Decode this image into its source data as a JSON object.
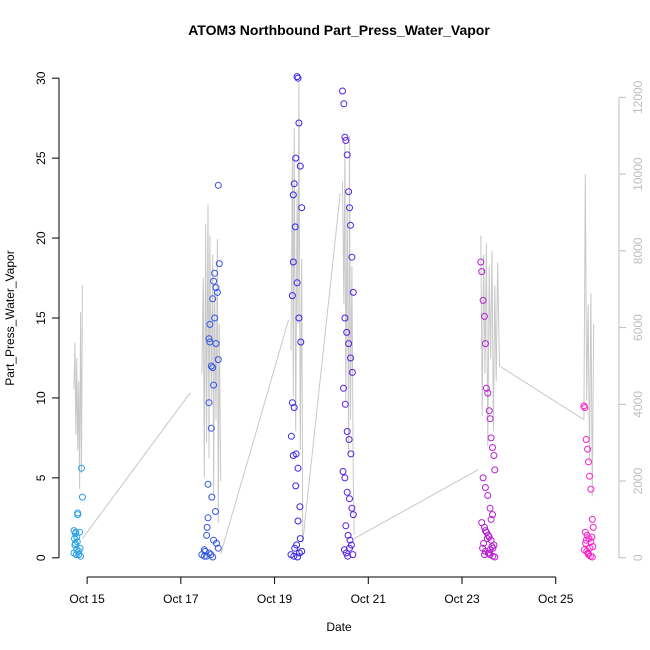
{
  "chart_data": {
    "type": "scatter",
    "title": "ATOM3 Northbound Part_Press_Water_Vapor",
    "xlabel": "Date",
    "ylabel": "Part_Press_Water_Vapor",
    "x_ticks": [
      "Oct 15",
      "Oct 17",
      "Oct 19",
      "Oct 21",
      "Oct 23",
      "Oct 25"
    ],
    "x_tick_values": [
      15,
      17,
      19,
      21,
      23,
      25
    ],
    "xlim": [
      14.4,
      26.35
    ],
    "y_ticks": [
      0,
      5,
      10,
      15,
      20,
      25,
      30
    ],
    "ylim": [
      -1.2,
      31.2
    ],
    "y2_ticks": [
      0,
      2000,
      4000,
      6000,
      8000,
      10000,
      12000
    ],
    "y2lim": [
      -500,
      13000
    ],
    "grid": false,
    "series": [
      {
        "kind": "points",
        "color_start": "#29a3e6",
        "color_end": "#ff1fc8",
        "x": [
          14.72,
          14.73,
          14.74,
          14.75,
          14.76,
          14.77,
          14.78,
          14.79,
          14.8,
          14.8,
          14.82,
          14.84,
          14.86,
          14.88,
          14.9,
          14.72,
          14.75,
          14.78,
          14.82,
          14.85,
          17.45,
          17.5,
          17.55,
          17.58,
          17.6,
          17.62,
          17.65,
          17.68,
          17.7,
          17.72,
          17.75,
          17.78,
          17.8,
          17.82,
          17.55,
          17.6,
          17.65,
          17.7,
          17.75,
          17.8,
          17.62,
          17.68,
          17.72,
          17.58,
          17.66,
          17.74,
          17.5,
          17.6,
          17.7,
          17.8,
          17.52,
          17.64,
          17.76,
          17.56,
          17.68,
          19.35,
          19.38,
          19.4,
          19.42,
          19.45,
          19.48,
          19.5,
          19.52,
          19.55,
          19.58,
          19.4,
          19.44,
          19.48,
          19.52,
          19.56,
          19.38,
          19.42,
          19.46,
          19.5,
          19.54,
          19.36,
          19.4,
          19.45,
          19.5,
          19.55,
          19.58,
          19.41,
          19.47,
          19.53,
          19.43,
          19.49,
          20.45,
          20.48,
          20.5,
          20.52,
          20.55,
          20.58,
          20.6,
          20.62,
          20.65,
          20.68,
          20.5,
          20.54,
          20.58,
          20.62,
          20.66,
          20.47,
          20.51,
          20.55,
          20.59,
          20.63,
          20.46,
          20.5,
          20.55,
          20.6,
          20.65,
          20.68,
          20.52,
          20.57,
          20.61,
          20.64,
          20.49,
          20.53,
          20.56,
          20.6,
          20.67,
          23.4,
          23.42,
          23.45,
          23.48,
          23.5,
          23.52,
          23.55,
          23.58,
          23.6,
          23.62,
          23.65,
          23.68,
          23.7,
          23.45,
          23.5,
          23.55,
          23.6,
          23.65,
          23.42,
          23.48,
          23.52,
          23.58,
          23.62,
          23.68,
          23.44,
          23.5,
          23.56,
          23.6,
          23.66,
          23.7,
          23.46,
          23.54,
          23.6,
          23.64,
          23.5,
          23.56,
          23.62,
          23.48,
          23.58,
          23.66,
          25.6,
          25.62,
          25.65,
          25.68,
          25.7,
          25.72,
          25.75,
          25.78,
          25.8,
          25.63,
          25.67,
          25.71,
          25.75,
          25.79,
          25.61,
          25.66,
          25.7,
          25.74,
          25.78,
          25.64,
          25.69,
          25.73,
          25.77,
          25.65
        ],
        "y": [
          1.7,
          1.2,
          0.8,
          1.5,
          1.6,
          0.2,
          0.5,
          1.0,
          2.8,
          2.7,
          0.4,
          1.6,
          0.1,
          5.6,
          3.8,
          0.3,
          0.9,
          1.3,
          0.2,
          0.6,
          0.2,
          0.5,
          0.1,
          2.5,
          13.7,
          13.5,
          12.0,
          11.9,
          17.3,
          17.8,
          16.9,
          16.6,
          23.3,
          18.4,
          1.4,
          9.7,
          8.1,
          10.8,
          13.4,
          12.4,
          14.6,
          16.2,
          15.0,
          4.6,
          3.8,
          2.9,
          0.1,
          0.3,
          1.1,
          0.6,
          0.4,
          0.2,
          0.9,
          1.9,
          0.05,
          0.2,
          16.4,
          18.5,
          23.4,
          25.0,
          30.1,
          30.0,
          27.2,
          24.5,
          21.9,
          22.7,
          20.7,
          17.2,
          15.0,
          13.5,
          9.7,
          9.4,
          6.5,
          5.6,
          3.2,
          7.6,
          6.4,
          4.5,
          2.3,
          1.2,
          0.4,
          0.1,
          0.8,
          0.3,
          0.6,
          0.05,
          29.2,
          28.4,
          26.3,
          26.1,
          25.2,
          22.9,
          21.9,
          20.8,
          18.8,
          16.6,
          15.0,
          14.1,
          13.4,
          12.5,
          11.6,
          10.6,
          9.6,
          7.9,
          7.4,
          6.5,
          5.4,
          5.0,
          4.1,
          3.7,
          3.1,
          2.7,
          2.0,
          1.4,
          1.1,
          0.8,
          0.5,
          0.3,
          0.1,
          0.6,
          0.2,
          18.5,
          17.9,
          16.1,
          15.1,
          13.4,
          10.6,
          10.3,
          9.2,
          8.7,
          7.5,
          6.9,
          6.4,
          5.5,
          5.0,
          4.4,
          3.9,
          3.1,
          2.7,
          2.2,
          1.9,
          1.6,
          1.3,
          1.1,
          0.8,
          0.6,
          0.4,
          0.3,
          0.2,
          0.1,
          0.05,
          0.9,
          1.2,
          0.5,
          0.7,
          1.7,
          1.4,
          2.4,
          0.2,
          0.3,
          0.6,
          9.5,
          9.4,
          7.4,
          6.8,
          6.0,
          5.1,
          4.3,
          2.4,
          1.9,
          1.6,
          1.4,
          1.2,
          1.0,
          0.7,
          0.5,
          0.4,
          0.2,
          0.1,
          0.05,
          0.9,
          0.3,
          0.6,
          1.3,
          1.1
        ]
      },
      {
        "kind": "line",
        "axis": "right",
        "color": "#c8c8c8",
        "segments": [
          {
            "x": [
              14.72,
              14.74,
              14.76,
              14.78,
              14.8,
              14.82,
              14.84,
              14.86,
              14.88,
              14.9
            ],
            "y": [
              4400,
              5600,
              3200,
              5200,
              2800,
              4600,
              1800,
              6400,
              2200,
              7100
            ]
          },
          {
            "x": [
              14.9,
              17.2
            ],
            "y": [
              500,
              4300
            ]
          },
          {
            "x": [
              17.45,
              17.48,
              17.5,
              17.53,
              17.55,
              17.58,
              17.6,
              17.62,
              17.65,
              17.68,
              17.7,
              17.72,
              17.75,
              17.78,
              17.8,
              17.82,
              17.85
            ],
            "y": [
              4800,
              7300,
              2100,
              8700,
              3000,
              9200,
              2600,
              8400,
              4100,
              7900,
              1600,
              7000,
              3600,
              8300,
              900,
              6100,
              2000
            ]
          },
          {
            "x": [
              17.85,
              19.3
            ],
            "y": [
              100,
              6200
            ]
          },
          {
            "x": [
              19.35,
              19.38,
              19.4,
              19.42,
              19.45,
              19.48,
              19.5,
              19.52,
              19.55,
              19.58,
              19.6
            ],
            "y": [
              5400,
              10400,
              4200,
              11200,
              3300,
              9600,
              6100,
              12400,
              2800,
              7800,
              400
            ]
          },
          {
            "x": [
              19.6,
              20.4
            ],
            "y": [
              400,
              9500
            ]
          },
          {
            "x": [
              20.45,
              20.48,
              20.5,
              20.52,
              20.55,
              20.58,
              20.6,
              20.62,
              20.65,
              20.68,
              20.7
            ],
            "y": [
              9800,
              6600,
              10800,
              4100,
              9200,
              2700,
              11000,
              3600,
              7600,
              1900,
              600
            ]
          },
          {
            "x": [
              20.7,
              23.35
            ],
            "y": [
              500,
              2300
            ]
          },
          {
            "x": [
              23.4,
              23.43,
              23.46,
              23.49,
              23.52,
              23.55,
              23.58,
              23.61,
              23.64,
              23.67,
              23.7,
              23.73,
              23.76,
              23.8
            ],
            "y": [
              8400,
              3700,
              7900,
              4800,
              8200,
              2900,
              7600,
              5200,
              8000,
              3300,
              7100,
              4600,
              7700,
              5000
            ]
          },
          {
            "x": [
              23.8,
              25.6
            ],
            "y": [
              5000,
              3600
            ]
          },
          {
            "x": [
              25.6,
              25.63,
              25.66,
              25.69,
              25.72,
              25.75,
              25.78,
              25.81
            ],
            "y": [
              3600,
              10000,
              4100,
              6600,
              2500,
              6900,
              1600,
              6100
            ]
          }
        ]
      }
    ]
  }
}
